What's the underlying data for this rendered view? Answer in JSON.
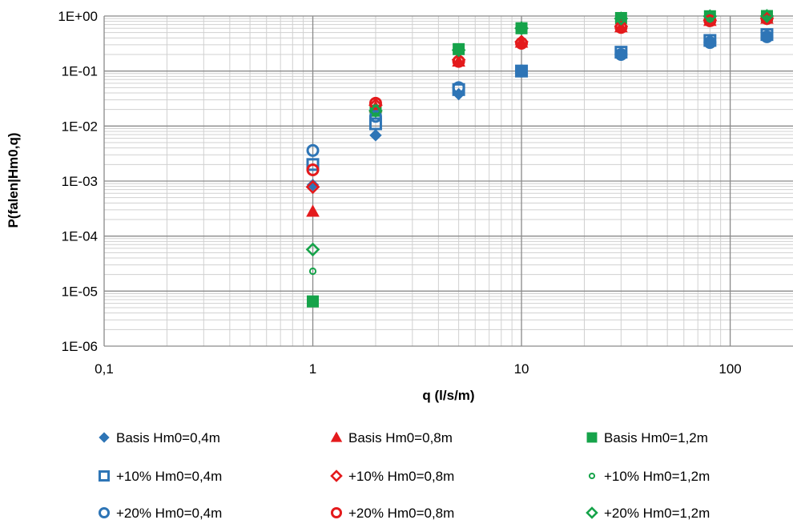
{
  "chart_data": {
    "type": "scatter",
    "title": "",
    "xlabel": "q (l/s/m)",
    "ylabel": "P(falen|Hm0,q)",
    "x_scale": "log",
    "y_scale": "log",
    "xlim": [
      0.1,
      200
    ],
    "ylim": [
      1e-06,
      1
    ],
    "x_ticks": [
      0.1,
      1,
      10,
      100
    ],
    "x_tick_labels": [
      "0,1",
      "1",
      "10",
      "100"
    ],
    "y_ticks": [
      1e-06,
      1e-05,
      0.0001,
      0.001,
      0.01,
      0.1,
      1
    ],
    "y_tick_labels": [
      "1E-06",
      "1E-05",
      "1E-04",
      "1E-03",
      "1E-02",
      "1E-01",
      "1E+00"
    ],
    "grid": true,
    "legend_position": "bottom",
    "series": [
      {
        "name": "Basis Hm0=0,4m",
        "marker": "diamond",
        "filled": true,
        "color": "#2E75B6",
        "x": [
          1,
          2,
          5,
          10,
          30,
          80,
          150
        ],
        "y": [
          0.00085,
          0.0068,
          0.038,
          0.1,
          0.2,
          0.33,
          0.42
        ]
      },
      {
        "name": "Basis Hm0=0,8m",
        "marker": "triangle",
        "filled": true,
        "color": "#E41A1C",
        "x": [
          1,
          2,
          5,
          10,
          30,
          80,
          150
        ],
        "y": [
          0.00028,
          0.022,
          0.15,
          0.33,
          0.63,
          0.82,
          0.9
        ]
      },
      {
        "name": "Basis Hm0=1,2m",
        "marker": "square",
        "filled": true,
        "color": "#16A34A",
        "x": [
          1,
          2,
          5,
          10,
          30,
          80,
          150
        ],
        "y": [
          6.5e-06,
          0.019,
          0.25,
          0.6,
          0.92,
          0.99,
          1.0
        ]
      },
      {
        "name": "+10% Hm0=0,4m",
        "marker": "square",
        "filled": false,
        "color": "#2E75B6",
        "x": [
          1,
          2,
          5,
          10,
          30,
          80,
          150
        ],
        "y": [
          0.002,
          0.011,
          0.046,
          0.1,
          0.22,
          0.36,
          0.46
        ]
      },
      {
        "name": "+10% Hm0=0,8m",
        "marker": "diamond",
        "filled": false,
        "color": "#E41A1C",
        "x": [
          1,
          2,
          5,
          10,
          30,
          80,
          150
        ],
        "y": [
          0.00078,
          0.024,
          0.16,
          0.34,
          0.65,
          0.84,
          0.91
        ]
      },
      {
        "name": "+10% Hm0=1,2m",
        "marker": "small-circle",
        "filled": false,
        "color": "#16A34A",
        "x": [
          1,
          2,
          5,
          10,
          30,
          80,
          150
        ],
        "y": [
          2.3e-05,
          0.02,
          0.24,
          0.6,
          0.92,
          0.99,
          1.0
        ]
      },
      {
        "name": "+20% Hm0=0,4m",
        "marker": "circle",
        "filled": false,
        "color": "#2E75B6",
        "x": [
          1,
          2,
          5,
          10,
          30,
          80,
          150
        ],
        "y": [
          0.0036,
          0.015,
          0.05,
          0.1,
          0.2,
          0.33,
          0.42
        ]
      },
      {
        "name": "+20% Hm0=0,8m",
        "marker": "circle",
        "filled": false,
        "color": "#E41A1C",
        "x": [
          1,
          2,
          5,
          10,
          30,
          80,
          150
        ],
        "y": [
          0.0016,
          0.026,
          0.15,
          0.32,
          0.62,
          0.82,
          0.9
        ]
      },
      {
        "name": "+20% Hm0=1,2m",
        "marker": "diamond",
        "filled": false,
        "color": "#16A34A",
        "x": [
          1,
          2,
          5,
          10,
          30,
          80,
          150
        ],
        "y": [
          5.7e-05,
          0.019,
          0.24,
          0.6,
          0.9,
          0.99,
          1.0
        ]
      }
    ]
  }
}
